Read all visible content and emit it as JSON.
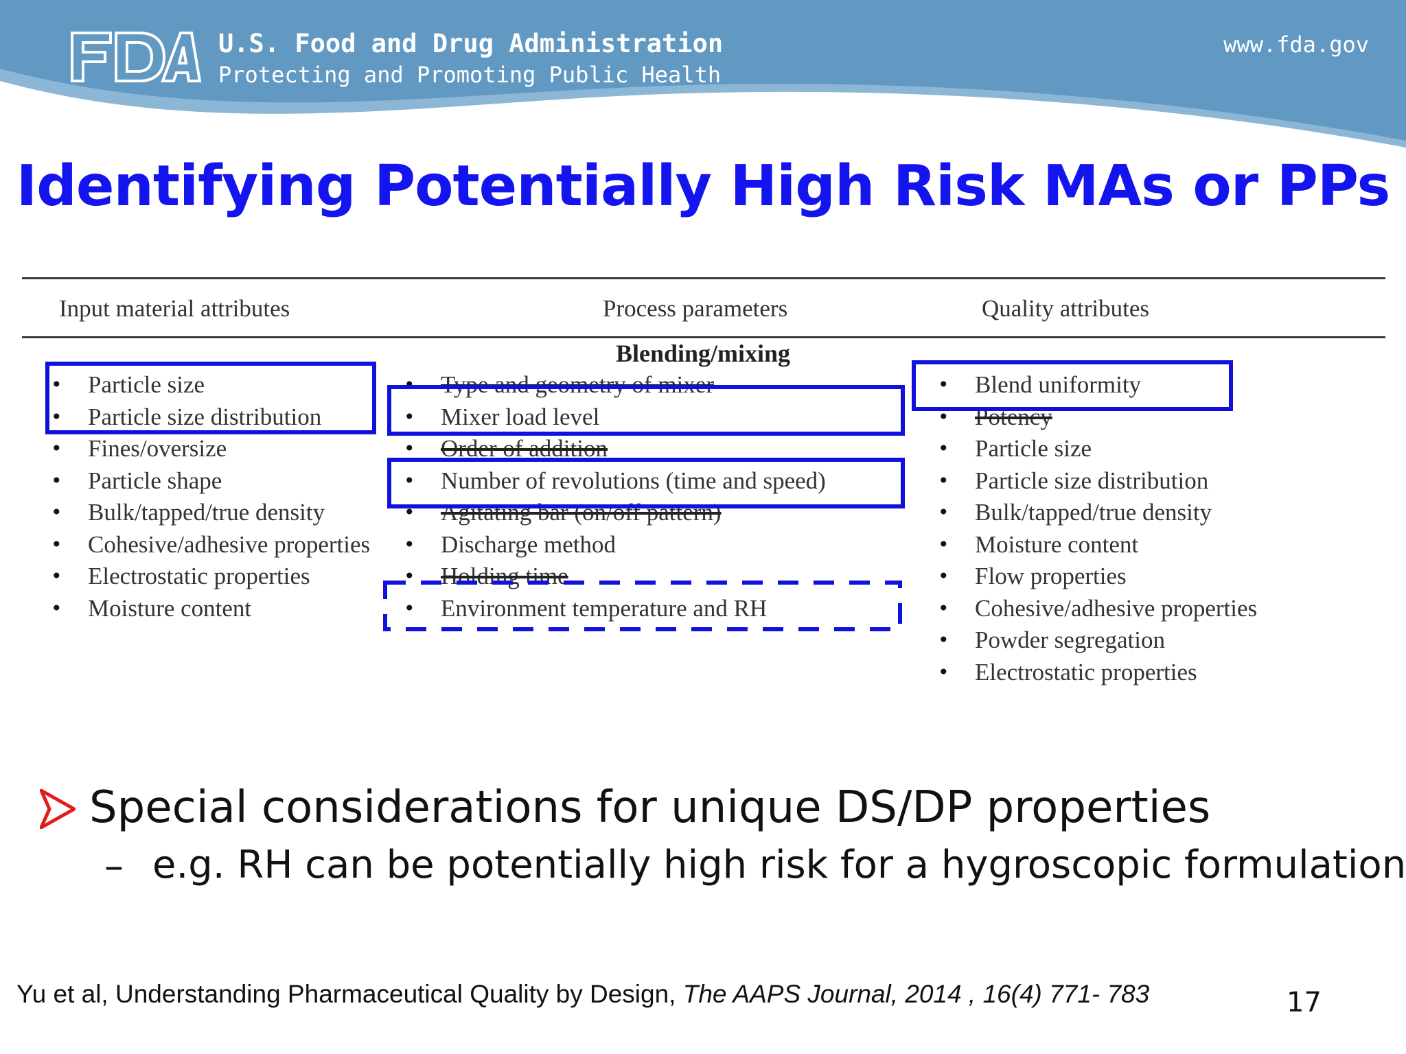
{
  "header": {
    "agency_name": "U.S. Food and Drug Administration",
    "tagline": "Protecting and Promoting Public Health",
    "url": "www.fda.gov",
    "logo_text": "FDA",
    "colors": {
      "banner_dark": "#5e95bf",
      "banner_light": "#8cb6d6",
      "title": "#1414ee",
      "highlight": "#1111dd",
      "arrow": "#e41b1b"
    }
  },
  "slide": {
    "title": "Identifying Potentially High Risk MAs or PPs",
    "page_number": "17"
  },
  "table": {
    "headers": {
      "input": "Input material attributes",
      "process": "Process parameters",
      "quality": "Quality attributes"
    },
    "section": "Blending/mixing",
    "input_attributes": [
      "Particle size",
      "Particle size distribution",
      "Fines/oversize",
      "Particle shape",
      "Bulk/tapped/true density",
      "Cohesive/adhesive properties",
      "Electrostatic properties",
      "Moisture content"
    ],
    "process_parameters": [
      "Type and geometry of mixer",
      "Mixer load level",
      "Order of addition",
      "Number of revolutions (time and speed)",
      "Agitating bar (on/off pattern)",
      "Discharge method",
      "Holding time",
      "Environment temperature and RH"
    ],
    "quality_attributes": [
      "Blend uniformity",
      "Potency",
      "Particle size",
      "Particle size distribution",
      "Bulk/tapped/true density",
      "Moisture content",
      "Flow properties",
      "Cohesive/adhesive properties",
      "Powder segregation",
      "Electrostatic properties"
    ]
  },
  "bullets": {
    "main": "Special considerations for unique DS/DP properties",
    "sub_dash": "–",
    "sub": "e.g. RH can be potentially high risk for a hygroscopic formulation"
  },
  "citation": {
    "authors": "Yu et al, Understanding Pharmaceutical Quality by Design, ",
    "journal": "The AAPS Journal, 2014 , 16(4) 771- 783"
  }
}
